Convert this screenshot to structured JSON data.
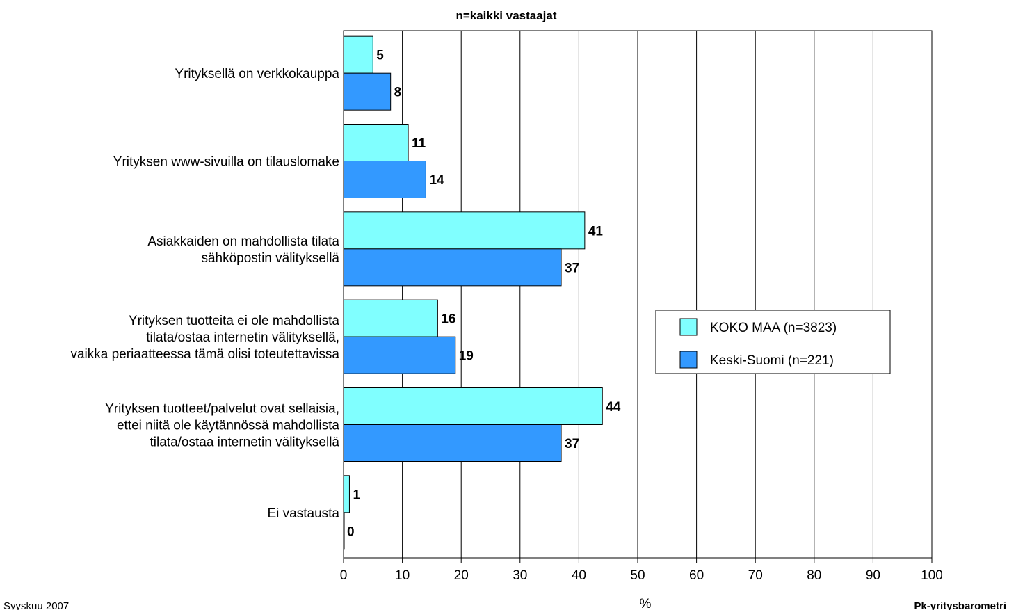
{
  "chart_data": {
    "type": "bar",
    "orientation": "horizontal",
    "title": "n=kaikki vastaajat",
    "xlabel": "%",
    "xlim": [
      0,
      100
    ],
    "xticks": [
      0,
      10,
      20,
      30,
      40,
      50,
      60,
      70,
      80,
      90,
      100
    ],
    "grid": true,
    "legend_position": "right",
    "categories": [
      [
        "Yrityksellä on verkkokauppa"
      ],
      [
        "Yrityksen www-sivuilla on tilauslomake"
      ],
      [
        "Asiakkaiden on mahdollista tilata",
        "sähköpostin välityksellä"
      ],
      [
        "Yrityksen tuotteita ei ole mahdollista",
        "tilata/ostaa internetin välityksellä,",
        "vaikka periaatteessa tämä olisi toteutettavissa"
      ],
      [
        "Yrityksen tuotteet/palvelut ovat sellaisia,",
        "ettei niitä ole käytännössä mahdollista",
        "tilata/ostaa internetin välityksellä"
      ],
      [
        "Ei vastausta"
      ]
    ],
    "series": [
      {
        "name": "KOKO MAA (n=3823)",
        "color": "#80FFFF",
        "values": [
          5,
          11,
          41,
          16,
          44,
          1
        ]
      },
      {
        "name": "Keski-Suomi (n=221)",
        "color": "#3399FF",
        "values": [
          8,
          14,
          37,
          19,
          37,
          0
        ]
      }
    ]
  },
  "footer": {
    "left": "Syyskuu 2007",
    "right": "Pk-yritysbarometri"
  }
}
